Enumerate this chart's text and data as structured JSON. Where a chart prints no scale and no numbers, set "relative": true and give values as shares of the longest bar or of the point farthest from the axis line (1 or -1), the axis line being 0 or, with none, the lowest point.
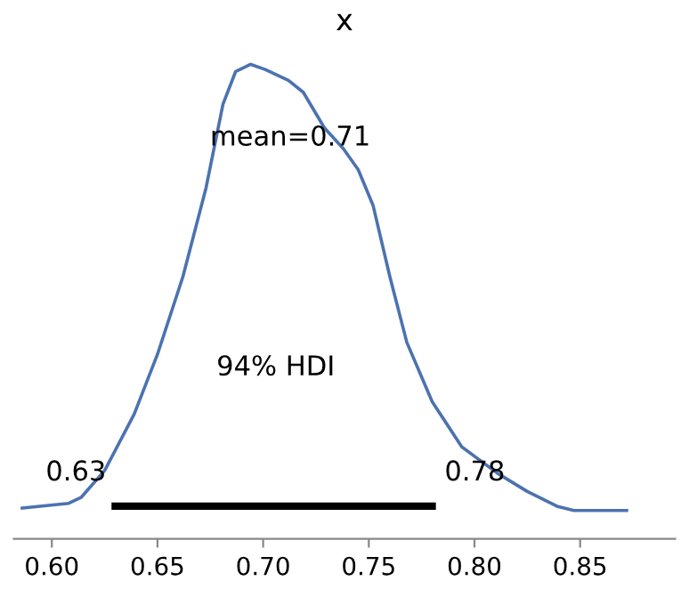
{
  "chart_data": {
    "type": "line",
    "title": "x",
    "relative": true,
    "xlim": [
      0.582,
      0.895
    ],
    "xticks": [
      {
        "value": 0.6,
        "label": "0.60"
      },
      {
        "value": 0.65,
        "label": "0.65"
      },
      {
        "value": 0.7,
        "label": "0.70"
      },
      {
        "value": 0.75,
        "label": "0.75"
      },
      {
        "value": 0.8,
        "label": "0.80"
      },
      {
        "value": 0.85,
        "label": "0.85"
      }
    ],
    "series": [
      {
        "color": "#4c72b0",
        "line_style": "solid",
        "x": [
          0.586,
          0.608,
          0.614,
          0.625,
          0.639,
          0.65,
          0.662,
          0.673,
          0.681,
          0.687,
          0.694,
          0.701,
          0.712,
          0.719,
          0.729,
          0.738,
          0.745,
          0.752,
          0.76,
          0.768,
          0.78,
          0.794,
          0.811,
          0.825,
          0.839,
          0.847,
          0.872
        ],
        "values": [
          0.065,
          0.075,
          0.088,
          0.144,
          0.263,
          0.389,
          0.552,
          0.74,
          0.916,
          0.985,
          1.0,
          0.989,
          0.966,
          0.941,
          0.866,
          0.822,
          0.778,
          0.703,
          0.552,
          0.414,
          0.289,
          0.194,
          0.138,
          0.1,
          0.069,
          0.06,
          0.06
        ]
      },
      {
        "color": "#000000",
        "line_style": "solid",
        "x": [
          0.63,
          0.78
        ],
        "values": [
          0.069,
          0.069
        ]
      }
    ],
    "annotations": [
      "mean=0.71",
      "94% HDI",
      "0.63",
      "0.78"
    ],
    "grid": false,
    "legend": false,
    "marker": "none"
  }
}
